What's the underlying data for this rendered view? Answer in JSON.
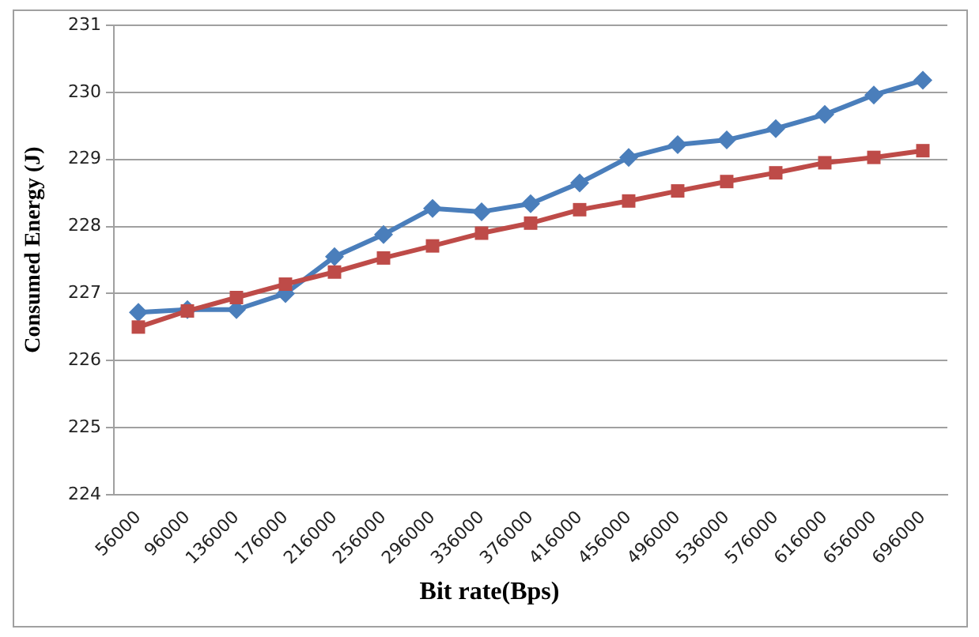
{
  "chart_data": {
    "type": "line",
    "xlabel": "Bit rate(Bps)",
    "ylabel": "Consumed Energy (J)",
    "categories": [
      "56000",
      "96000",
      "136000",
      "176000",
      "216000",
      "256000",
      "296000",
      "336000",
      "376000",
      "416000",
      "456000",
      "496000",
      "536000",
      "576000",
      "616000",
      "656000",
      "696000"
    ],
    "series": [
      {
        "color": "#4a7ebb",
        "marker": "diamond",
        "values": [
          226.72,
          226.76,
          226.76,
          227.0,
          227.55,
          227.88,
          228.27,
          228.22,
          228.34,
          228.65,
          229.03,
          229.22,
          229.29,
          229.46,
          229.67,
          229.96,
          230.18
        ]
      },
      {
        "color": "#be4b48",
        "marker": "square",
        "values": [
          226.5,
          226.74,
          226.94,
          227.14,
          227.32,
          227.53,
          227.71,
          227.9,
          228.05,
          228.25,
          228.38,
          228.53,
          228.67,
          228.8,
          228.95,
          229.03,
          229.13
        ]
      }
    ],
    "ylim": [
      224,
      231
    ],
    "yticks": [
      224,
      225,
      226,
      227,
      228,
      229,
      230,
      231
    ],
    "grid": "y",
    "legend": false
  }
}
